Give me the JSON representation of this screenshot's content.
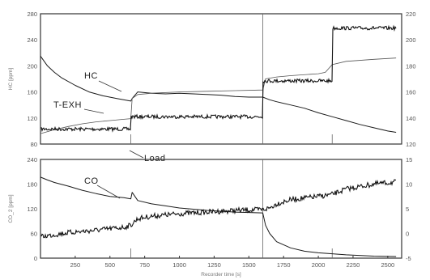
{
  "chart_data": [
    {
      "type": "line",
      "panel": "top",
      "ylabel_left": "HC [ppm]",
      "ylabel_right": "",
      "ylim_left": [
        80,
        280
      ],
      "yticks_left": [
        "280",
        "240",
        "200",
        "160",
        "120",
        "80"
      ],
      "yticks_right": [
        "220",
        "200",
        "180",
        "160",
        "140",
        "120"
      ],
      "xlim": [
        0,
        2600
      ],
      "annotations": [
        {
          "key": "hc",
          "text": "HC"
        },
        {
          "key": "texh",
          "text": "T-EXH"
        },
        {
          "key": "load",
          "text": "Load"
        }
      ],
      "series": [
        {
          "name": "HC",
          "x": [
            0,
            50,
            100,
            150,
            250,
            350,
            450,
            550,
            650,
            660,
            700,
            800,
            900,
            1000,
            1100,
            1200,
            1300,
            1400,
            1500,
            1600,
            1650,
            1700,
            1800,
            1900,
            2000,
            2100,
            2200,
            2300,
            2400,
            2500,
            2560
          ],
          "y": [
            215,
            200,
            190,
            182,
            170,
            160,
            154,
            150,
            146,
            150,
            160,
            158,
            157,
            158,
            157,
            156,
            155,
            153,
            152,
            152,
            148,
            145,
            140,
            135,
            128,
            122,
            116,
            110,
            105,
            100,
            98
          ]
        },
        {
          "name": "T-EXH",
          "x": [
            0,
            100,
            200,
            300,
            400,
            500,
            600,
            650,
            660,
            700,
            800,
            1000,
            1200,
            1400,
            1600,
            1620,
            1700,
            1800,
            2000,
            2050,
            2100,
            2200,
            2400,
            2560
          ],
          "y": [
            96,
            102,
            107,
            111,
            114,
            116,
            118,
            119,
            150,
            156,
            158,
            160,
            161,
            162,
            163,
            180,
            183,
            185,
            188,
            190,
            202,
            207,
            210,
            212
          ]
        },
        {
          "name": "Load",
          "x": [
            0,
            650,
            650,
            1600,
            1600,
            2100,
            2100,
            2560
          ],
          "y": [
            103,
            103,
            122,
            122,
            177,
            177,
            258,
            258
          ]
        }
      ]
    },
    {
      "type": "line",
      "panel": "bottom",
      "ylabel_left": "CO_2 [ppm]",
      "ylabel_right": "",
      "ylim_left": [
        0,
        240
      ],
      "yticks_left": [
        "240",
        "180",
        "120",
        "60",
        "0"
      ],
      "yticks_right": [
        "15",
        "10",
        "5",
        "0",
        "-5"
      ],
      "xlabel": "Recorder time [s]",
      "xlim": [
        0,
        2600
      ],
      "xticks": [
        "250",
        "500",
        "750",
        "1000",
        "1250",
        "1500",
        "1750",
        "2000",
        "2250",
        "2500"
      ],
      "annotations": [
        {
          "key": "co",
          "text": "CO"
        }
      ],
      "series": [
        {
          "name": "CO",
          "x": [
            0,
            50,
            100,
            200,
            300,
            400,
            500,
            600,
            650,
            660,
            700,
            800,
            900,
            1000,
            1200,
            1400,
            1600,
            1620,
            1650,
            1700,
            1800,
            1900,
            2000,
            2200,
            2400,
            2560
          ],
          "y": [
            197,
            190,
            184,
            175,
            165,
            157,
            150,
            147,
            144,
            160,
            140,
            132,
            127,
            122,
            116,
            112,
            110,
            80,
            60,
            40,
            25,
            17,
            13,
            8,
            5,
            4
          ]
        },
        {
          "name": "CO2",
          "x": [
            0,
            200,
            400,
            600,
            650,
            700,
            800,
            1000,
            1200,
            1400,
            1600,
            1650,
            1700,
            1800,
            2000,
            2100,
            2200,
            2400,
            2560
          ],
          "y": [
            52,
            62,
            68,
            75,
            80,
            96,
            102,
            108,
            112,
            116,
            118,
            122,
            132,
            142,
            150,
            155,
            168,
            180,
            185
          ]
        }
      ]
    }
  ]
}
